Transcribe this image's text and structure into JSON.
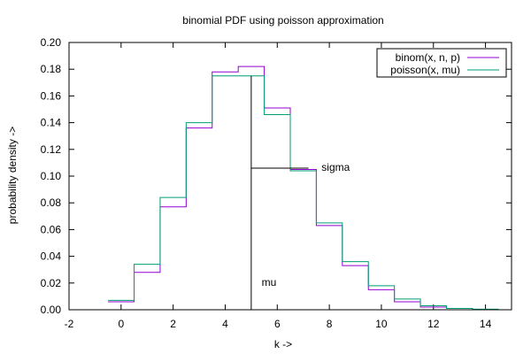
{
  "chart_data": {
    "type": "line",
    "title": "binomial PDF using poisson approximation",
    "xlabel": "k ->",
    "ylabel": "probability density ->",
    "xlim": [
      -2,
      15
    ],
    "ylim": [
      0,
      0.2
    ],
    "xticks": [
      -2,
      0,
      2,
      4,
      6,
      8,
      10,
      12,
      14
    ],
    "yticks": [
      0.0,
      0.02,
      0.04,
      0.06,
      0.08,
      0.1,
      0.12,
      0.14,
      0.16,
      0.18,
      0.2
    ],
    "ytick_format": "2dp",
    "grid": false,
    "legend_position": "top-right",
    "series": [
      {
        "name": "binom(x, n, p)",
        "color": "#9400d3",
        "style": "steps",
        "x": [
          0,
          1,
          2,
          3,
          4,
          5,
          6,
          7,
          8,
          9,
          10,
          11,
          12,
          13,
          14
        ],
        "values": [
          0.006,
          0.028,
          0.077,
          0.136,
          0.178,
          0.182,
          0.151,
          0.105,
          0.063,
          0.033,
          0.015,
          0.006,
          0.002,
          0.001,
          0.0002
        ]
      },
      {
        "name": "poisson(x, mu)",
        "color": "#009e73",
        "style": "steps",
        "x": [
          0,
          1,
          2,
          3,
          4,
          5,
          6,
          7,
          8,
          9,
          10,
          11,
          12,
          13,
          14
        ],
        "values": [
          0.007,
          0.034,
          0.084,
          0.14,
          0.175,
          0.175,
          0.146,
          0.104,
          0.065,
          0.036,
          0.018,
          0.008,
          0.003,
          0.001,
          0.0004
        ]
      }
    ],
    "annotations": [
      {
        "label": "mu",
        "type": "vline",
        "x": 5,
        "y_from": 0,
        "y_to": 0.175,
        "label_x": 5.4,
        "label_y": 0.018
      },
      {
        "label": "sigma",
        "type": "hline",
        "y": 0.106,
        "x_from": 5,
        "x_to": 7.2,
        "label_x": 7.7,
        "label_y": 0.104
      }
    ]
  }
}
